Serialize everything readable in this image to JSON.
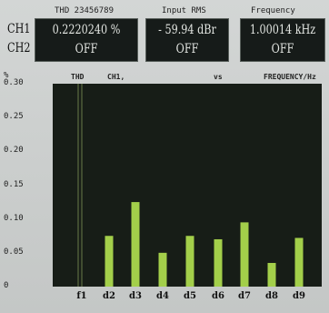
{
  "headers": {
    "thd": "THD 23456789",
    "input": "Input RMS",
    "freq": "Frequency"
  },
  "channels": {
    "ch1": "CH1",
    "ch2": "CH2"
  },
  "meters": {
    "thd": {
      "ch1": "0.2220240 %",
      "ch2": "OFF"
    },
    "input": {
      "ch1": "- 59.94 dBr",
      "ch2": "OFF"
    },
    "freq": {
      "ch1": "1.00014 kHz",
      "ch2": "OFF"
    }
  },
  "chart_header": {
    "thd": "THD",
    "ch": "CH1,",
    "vs": "vs",
    "freq": "FREQUENCY/Hz"
  },
  "colors": {
    "plot_bg": "#171d17",
    "bar": "#a3cf4a",
    "marker": "#6a7a48"
  },
  "chart_data": {
    "type": "bar",
    "ylabel": "%",
    "ylim": [
      0,
      0.3
    ],
    "yticks": [
      "0.30",
      "0.25",
      "0.20",
      "0.15",
      "0.10",
      "0.05",
      "0"
    ],
    "categories": [
      "f1",
      "d2",
      "d3",
      "d4",
      "d5",
      "d6",
      "d7",
      "d8",
      "d9"
    ],
    "values": [
      0,
      0.075,
      0.125,
      0.05,
      0.075,
      0.07,
      0.095,
      0.035,
      0.072
    ]
  }
}
